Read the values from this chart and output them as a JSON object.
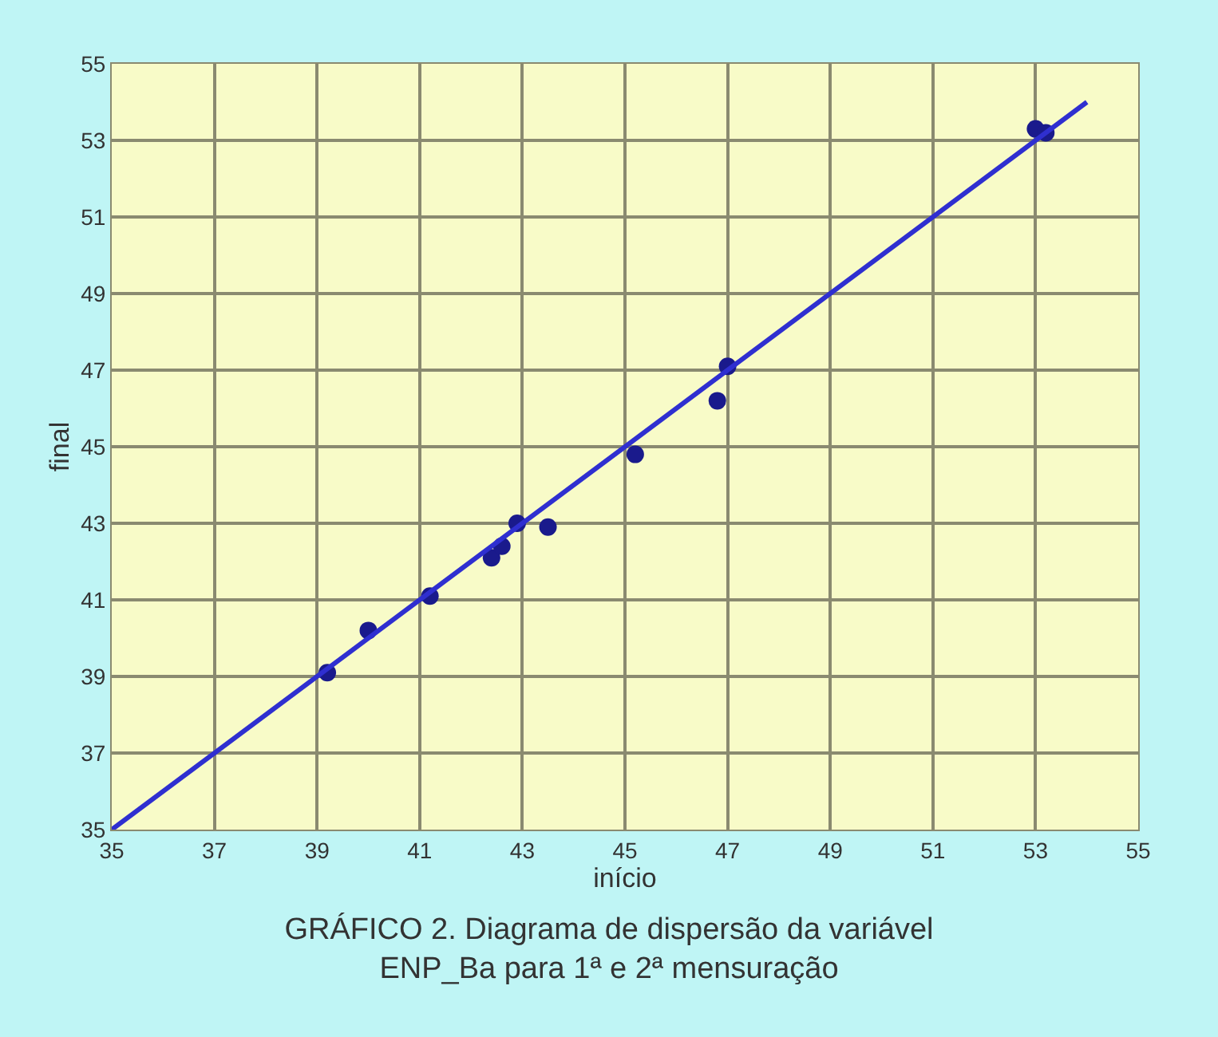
{
  "chart_data": {
    "type": "scatter",
    "title": "GRÁFICO 2. Diagrama de dispersão da variável\nENP_Ba para 1ª e 2ª mensuração",
    "xlabel": "início",
    "ylabel": "final",
    "x": [
      39.2,
      40.0,
      41.2,
      42.4,
      42.6,
      42.9,
      43.5,
      45.2,
      46.8,
      47.0,
      53.0,
      53.2
    ],
    "series": [
      {
        "color": "#1a1a8c",
        "values": [
          39.1,
          40.2,
          41.1,
          42.1,
          42.4,
          43.0,
          42.9,
          44.8,
          46.2,
          47.1,
          53.3,
          53.2
        ],
        "marker": "circle"
      },
      {
        "type": "line",
        "color": "#2f2fd0",
        "x": [
          35,
          54
        ],
        "values": [
          35,
          54
        ]
      }
    ],
    "xlim": [
      35,
      55
    ],
    "xticks": [
      35,
      37,
      39,
      41,
      43,
      45,
      47,
      49,
      51,
      53,
      55
    ],
    "ylim": [
      35,
      55
    ],
    "yticks": [
      35,
      37,
      39,
      41,
      43,
      45,
      47,
      49,
      51,
      53,
      55
    ],
    "grid": true,
    "legend": false
  }
}
